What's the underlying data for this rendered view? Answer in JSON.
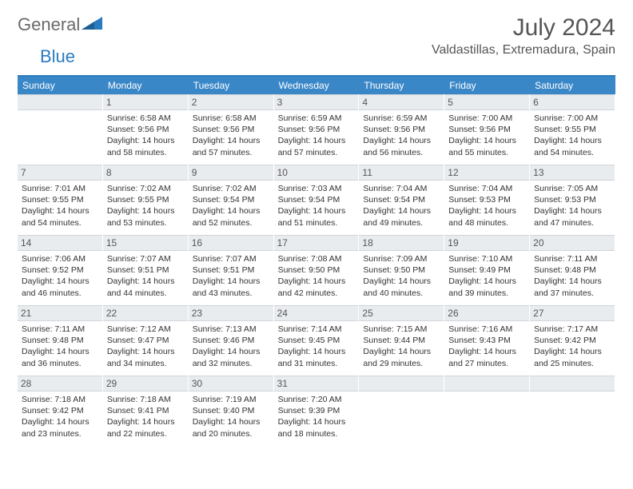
{
  "brand": {
    "name_part1": "General",
    "name_part2": "Blue"
  },
  "header": {
    "title": "July 2024",
    "location": "Valdastillas, Extremadura, Spain"
  },
  "colors": {
    "header_blue": "#3a87c8",
    "border_blue": "#2b7bbd",
    "daynum_bg": "#e9ecef",
    "text": "#333333",
    "muted": "#555555"
  },
  "weekdays": [
    "Sunday",
    "Monday",
    "Tuesday",
    "Wednesday",
    "Thursday",
    "Friday",
    "Saturday"
  ],
  "start_offset": 1,
  "days": [
    {
      "n": 1,
      "sr": "6:58 AM",
      "ss": "9:56 PM",
      "dl": "14 hours and 58 minutes."
    },
    {
      "n": 2,
      "sr": "6:58 AM",
      "ss": "9:56 PM",
      "dl": "14 hours and 57 minutes."
    },
    {
      "n": 3,
      "sr": "6:59 AM",
      "ss": "9:56 PM",
      "dl": "14 hours and 57 minutes."
    },
    {
      "n": 4,
      "sr": "6:59 AM",
      "ss": "9:56 PM",
      "dl": "14 hours and 56 minutes."
    },
    {
      "n": 5,
      "sr": "7:00 AM",
      "ss": "9:56 PM",
      "dl": "14 hours and 55 minutes."
    },
    {
      "n": 6,
      "sr": "7:00 AM",
      "ss": "9:55 PM",
      "dl": "14 hours and 54 minutes."
    },
    {
      "n": 7,
      "sr": "7:01 AM",
      "ss": "9:55 PM",
      "dl": "14 hours and 54 minutes."
    },
    {
      "n": 8,
      "sr": "7:02 AM",
      "ss": "9:55 PM",
      "dl": "14 hours and 53 minutes."
    },
    {
      "n": 9,
      "sr": "7:02 AM",
      "ss": "9:54 PM",
      "dl": "14 hours and 52 minutes."
    },
    {
      "n": 10,
      "sr": "7:03 AM",
      "ss": "9:54 PM",
      "dl": "14 hours and 51 minutes."
    },
    {
      "n": 11,
      "sr": "7:04 AM",
      "ss": "9:54 PM",
      "dl": "14 hours and 49 minutes."
    },
    {
      "n": 12,
      "sr": "7:04 AM",
      "ss": "9:53 PM",
      "dl": "14 hours and 48 minutes."
    },
    {
      "n": 13,
      "sr": "7:05 AM",
      "ss": "9:53 PM",
      "dl": "14 hours and 47 minutes."
    },
    {
      "n": 14,
      "sr": "7:06 AM",
      "ss": "9:52 PM",
      "dl": "14 hours and 46 minutes."
    },
    {
      "n": 15,
      "sr": "7:07 AM",
      "ss": "9:51 PM",
      "dl": "14 hours and 44 minutes."
    },
    {
      "n": 16,
      "sr": "7:07 AM",
      "ss": "9:51 PM",
      "dl": "14 hours and 43 minutes."
    },
    {
      "n": 17,
      "sr": "7:08 AM",
      "ss": "9:50 PM",
      "dl": "14 hours and 42 minutes."
    },
    {
      "n": 18,
      "sr": "7:09 AM",
      "ss": "9:50 PM",
      "dl": "14 hours and 40 minutes."
    },
    {
      "n": 19,
      "sr": "7:10 AM",
      "ss": "9:49 PM",
      "dl": "14 hours and 39 minutes."
    },
    {
      "n": 20,
      "sr": "7:11 AM",
      "ss": "9:48 PM",
      "dl": "14 hours and 37 minutes."
    },
    {
      "n": 21,
      "sr": "7:11 AM",
      "ss": "9:48 PM",
      "dl": "14 hours and 36 minutes."
    },
    {
      "n": 22,
      "sr": "7:12 AM",
      "ss": "9:47 PM",
      "dl": "14 hours and 34 minutes."
    },
    {
      "n": 23,
      "sr": "7:13 AM",
      "ss": "9:46 PM",
      "dl": "14 hours and 32 minutes."
    },
    {
      "n": 24,
      "sr": "7:14 AM",
      "ss": "9:45 PM",
      "dl": "14 hours and 31 minutes."
    },
    {
      "n": 25,
      "sr": "7:15 AM",
      "ss": "9:44 PM",
      "dl": "14 hours and 29 minutes."
    },
    {
      "n": 26,
      "sr": "7:16 AM",
      "ss": "9:43 PM",
      "dl": "14 hours and 27 minutes."
    },
    {
      "n": 27,
      "sr": "7:17 AM",
      "ss": "9:42 PM",
      "dl": "14 hours and 25 minutes."
    },
    {
      "n": 28,
      "sr": "7:18 AM",
      "ss": "9:42 PM",
      "dl": "14 hours and 23 minutes."
    },
    {
      "n": 29,
      "sr": "7:18 AM",
      "ss": "9:41 PM",
      "dl": "14 hours and 22 minutes."
    },
    {
      "n": 30,
      "sr": "7:19 AM",
      "ss": "9:40 PM",
      "dl": "14 hours and 20 minutes."
    },
    {
      "n": 31,
      "sr": "7:20 AM",
      "ss": "9:39 PM",
      "dl": "14 hours and 18 minutes."
    }
  ],
  "labels": {
    "sunrise": "Sunrise:",
    "sunset": "Sunset:",
    "daylight": "Daylight:"
  }
}
